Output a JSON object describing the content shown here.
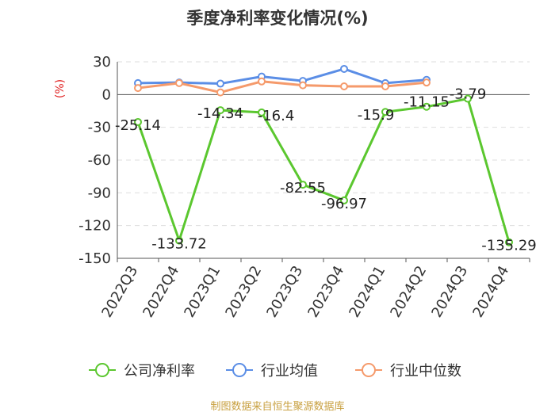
{
  "chart_data": {
    "type": "line",
    "title": "季度净利率变化情况(%)",
    "ylabel": "(%)",
    "categories": [
      "2022Q3",
      "2022Q4",
      "2023Q1",
      "2023Q2",
      "2023Q3",
      "2023Q4",
      "2024Q1",
      "2024Q2",
      "2024Q3",
      "2024Q4"
    ],
    "ylim": [
      -150,
      30
    ],
    "yticks": [
      30,
      0,
      -30,
      -60,
      -90,
      -120,
      -150
    ],
    "grid": true,
    "legend_position": "bottom",
    "series": [
      {
        "name": "公司净利率",
        "color": "#5bc72f",
        "values": [
          -25.14,
          -133.72,
          -14.34,
          -16.4,
          -82.55,
          -96.97,
          -15.9,
          -11.15,
          -3.79,
          -135.29
        ],
        "labels": [
          "-25.14",
          "-133.72",
          "-14.34",
          "-16.4",
          "-82.55",
          "-96.97",
          "-15.9",
          "-11.15",
          "-3.79",
          "-135.29"
        ]
      },
      {
        "name": "行业均值",
        "color": "#5b8ee6",
        "values": [
          10.5,
          11.0,
          10.0,
          16.5,
          12.5,
          23.5,
          10.5,
          13.5,
          null,
          null
        ]
      },
      {
        "name": "行业中位数",
        "color": "#f59a6b",
        "values": [
          6.0,
          10.5,
          2.0,
          12.0,
          8.5,
          7.5,
          7.5,
          11.0,
          null,
          null
        ]
      }
    ],
    "source": "制图数据来自恒生聚源数据库"
  }
}
